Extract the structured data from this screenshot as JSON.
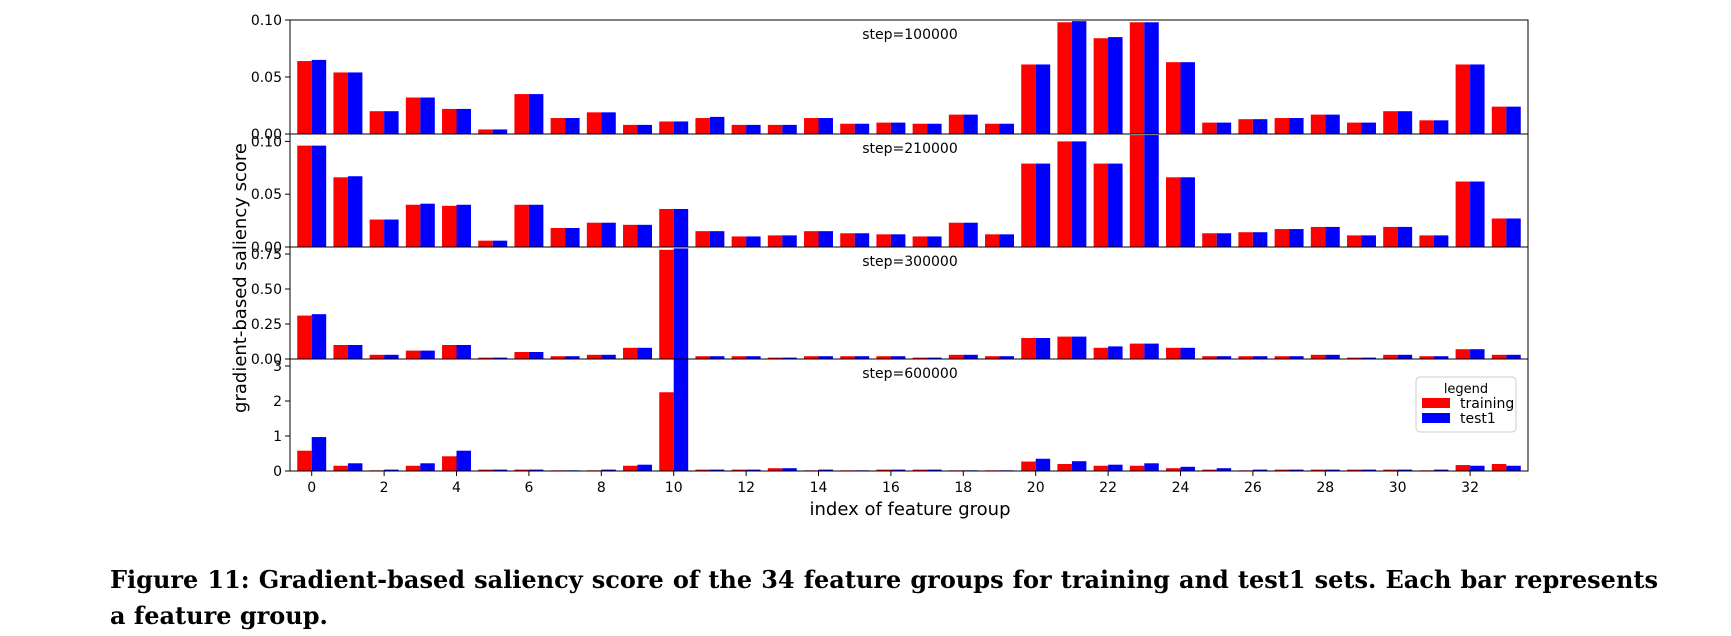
{
  "chart_data": {
    "type": "bar",
    "xlabel": "index of feature group",
    "ylabel": "gradient-based saliency score",
    "x_ticks": [
      0,
      2,
      4,
      6,
      8,
      10,
      12,
      14,
      16,
      18,
      20,
      22,
      24,
      26,
      28,
      30,
      32
    ],
    "categories": [
      0,
      1,
      2,
      3,
      4,
      5,
      6,
      7,
      8,
      9,
      10,
      11,
      12,
      13,
      14,
      15,
      16,
      17,
      18,
      19,
      20,
      21,
      22,
      23,
      24,
      25,
      26,
      27,
      28,
      29,
      30,
      31,
      32,
      33
    ],
    "legend": {
      "title": "legend",
      "placement": "right",
      "entries": [
        "training",
        "test1"
      ]
    },
    "colors": {
      "training": "#ff0000",
      "test1": "#0000ff"
    },
    "panels": [
      {
        "title": "step=100000",
        "ylim": [
          0,
          0.1
        ],
        "yticks": [
          "0.00",
          "0.05",
          "0.10"
        ],
        "series": [
          {
            "name": "training",
            "values": [
              0.064,
              0.054,
              0.02,
              0.032,
              0.022,
              0.004,
              0.035,
              0.014,
              0.019,
              0.008,
              0.011,
              0.014,
              0.008,
              0.008,
              0.014,
              0.009,
              0.01,
              0.009,
              0.017,
              0.009,
              0.061,
              0.098,
              0.084,
              0.098,
              0.063,
              0.01,
              0.013,
              0.014,
              0.017,
              0.01,
              0.02,
              0.012,
              0.061,
              0.024
            ]
          },
          {
            "name": "test1",
            "values": [
              0.065,
              0.054,
              0.02,
              0.032,
              0.022,
              0.004,
              0.035,
              0.014,
              0.019,
              0.008,
              0.011,
              0.015,
              0.008,
              0.008,
              0.014,
              0.009,
              0.01,
              0.009,
              0.017,
              0.009,
              0.061,
              0.099,
              0.085,
              0.098,
              0.063,
              0.01,
              0.013,
              0.014,
              0.017,
              0.01,
              0.02,
              0.012,
              0.061,
              0.024
            ]
          }
        ]
      },
      {
        "title": "step=210000",
        "ylim": [
          0,
          0.107
        ],
        "yticks": [
          "0.00",
          "0.05",
          "0.10"
        ],
        "series": [
          {
            "name": "training",
            "values": [
              0.096,
              0.066,
              0.026,
              0.04,
              0.039,
              0.006,
              0.04,
              0.018,
              0.023,
              0.021,
              0.036,
              0.015,
              0.01,
              0.011,
              0.015,
              0.013,
              0.012,
              0.01,
              0.023,
              0.012,
              0.079,
              0.1,
              0.079,
              0.106,
              0.066,
              0.013,
              0.014,
              0.017,
              0.019,
              0.011,
              0.019,
              0.011,
              0.062,
              0.027
            ]
          },
          {
            "name": "test1",
            "values": [
              0.096,
              0.067,
              0.026,
              0.041,
              0.04,
              0.006,
              0.04,
              0.018,
              0.023,
              0.021,
              0.036,
              0.015,
              0.01,
              0.011,
              0.015,
              0.013,
              0.012,
              0.01,
              0.023,
              0.012,
              0.079,
              0.1,
              0.079,
              0.106,
              0.066,
              0.013,
              0.014,
              0.017,
              0.019,
              0.011,
              0.019,
              0.011,
              0.062,
              0.027
            ]
          }
        ]
      },
      {
        "title": "step=300000",
        "ylim": [
          0,
          0.8
        ],
        "yticks": [
          "0.00",
          "0.25",
          "0.50",
          "0.75"
        ],
        "series": [
          {
            "name": "training",
            "values": [
              0.31,
              0.1,
              0.03,
              0.06,
              0.1,
              0.01,
              0.05,
              0.02,
              0.03,
              0.08,
              0.78,
              0.02,
              0.02,
              0.01,
              0.02,
              0.02,
              0.02,
              0.01,
              0.03,
              0.02,
              0.15,
              0.16,
              0.08,
              0.11,
              0.08,
              0.02,
              0.02,
              0.02,
              0.03,
              0.01,
              0.03,
              0.02,
              0.07,
              0.03
            ]
          },
          {
            "name": "test1",
            "values": [
              0.32,
              0.1,
              0.03,
              0.06,
              0.1,
              0.01,
              0.05,
              0.02,
              0.03,
              0.08,
              0.79,
              0.02,
              0.02,
              0.01,
              0.02,
              0.02,
              0.02,
              0.01,
              0.03,
              0.02,
              0.15,
              0.16,
              0.09,
              0.11,
              0.08,
              0.02,
              0.02,
              0.02,
              0.03,
              0.01,
              0.03,
              0.02,
              0.07,
              0.03
            ]
          }
        ]
      },
      {
        "title": "step=600000",
        "ylim": [
          0,
          3.2
        ],
        "yticks": [
          "0",
          "1",
          "2",
          "3"
        ],
        "series": [
          {
            "name": "training",
            "values": [
              0.58,
              0.15,
              0.02,
              0.15,
              0.42,
              0.04,
              0.04,
              0.02,
              0.02,
              0.15,
              2.25,
              0.04,
              0.04,
              0.08,
              0.02,
              0.02,
              0.04,
              0.04,
              0.02,
              0.02,
              0.27,
              0.2,
              0.15,
              0.15,
              0.08,
              0.04,
              0.02,
              0.04,
              0.04,
              0.04,
              0.04,
              0.02,
              0.17,
              0.2
            ]
          },
          {
            "name": "test1",
            "values": [
              0.97,
              0.22,
              0.04,
              0.22,
              0.58,
              0.04,
              0.04,
              0.02,
              0.04,
              0.18,
              3.2,
              0.04,
              0.04,
              0.08,
              0.04,
              0.02,
              0.04,
              0.04,
              0.02,
              0.02,
              0.35,
              0.28,
              0.18,
              0.22,
              0.12,
              0.08,
              0.04,
              0.04,
              0.04,
              0.04,
              0.04,
              0.04,
              0.15,
              0.15
            ]
          }
        ]
      }
    ]
  },
  "caption": {
    "label": "Figure 11:",
    "text": "Gradient-based saliency score of the 34 feature groups for training and test1 sets. Each bar represents a feature group."
  }
}
